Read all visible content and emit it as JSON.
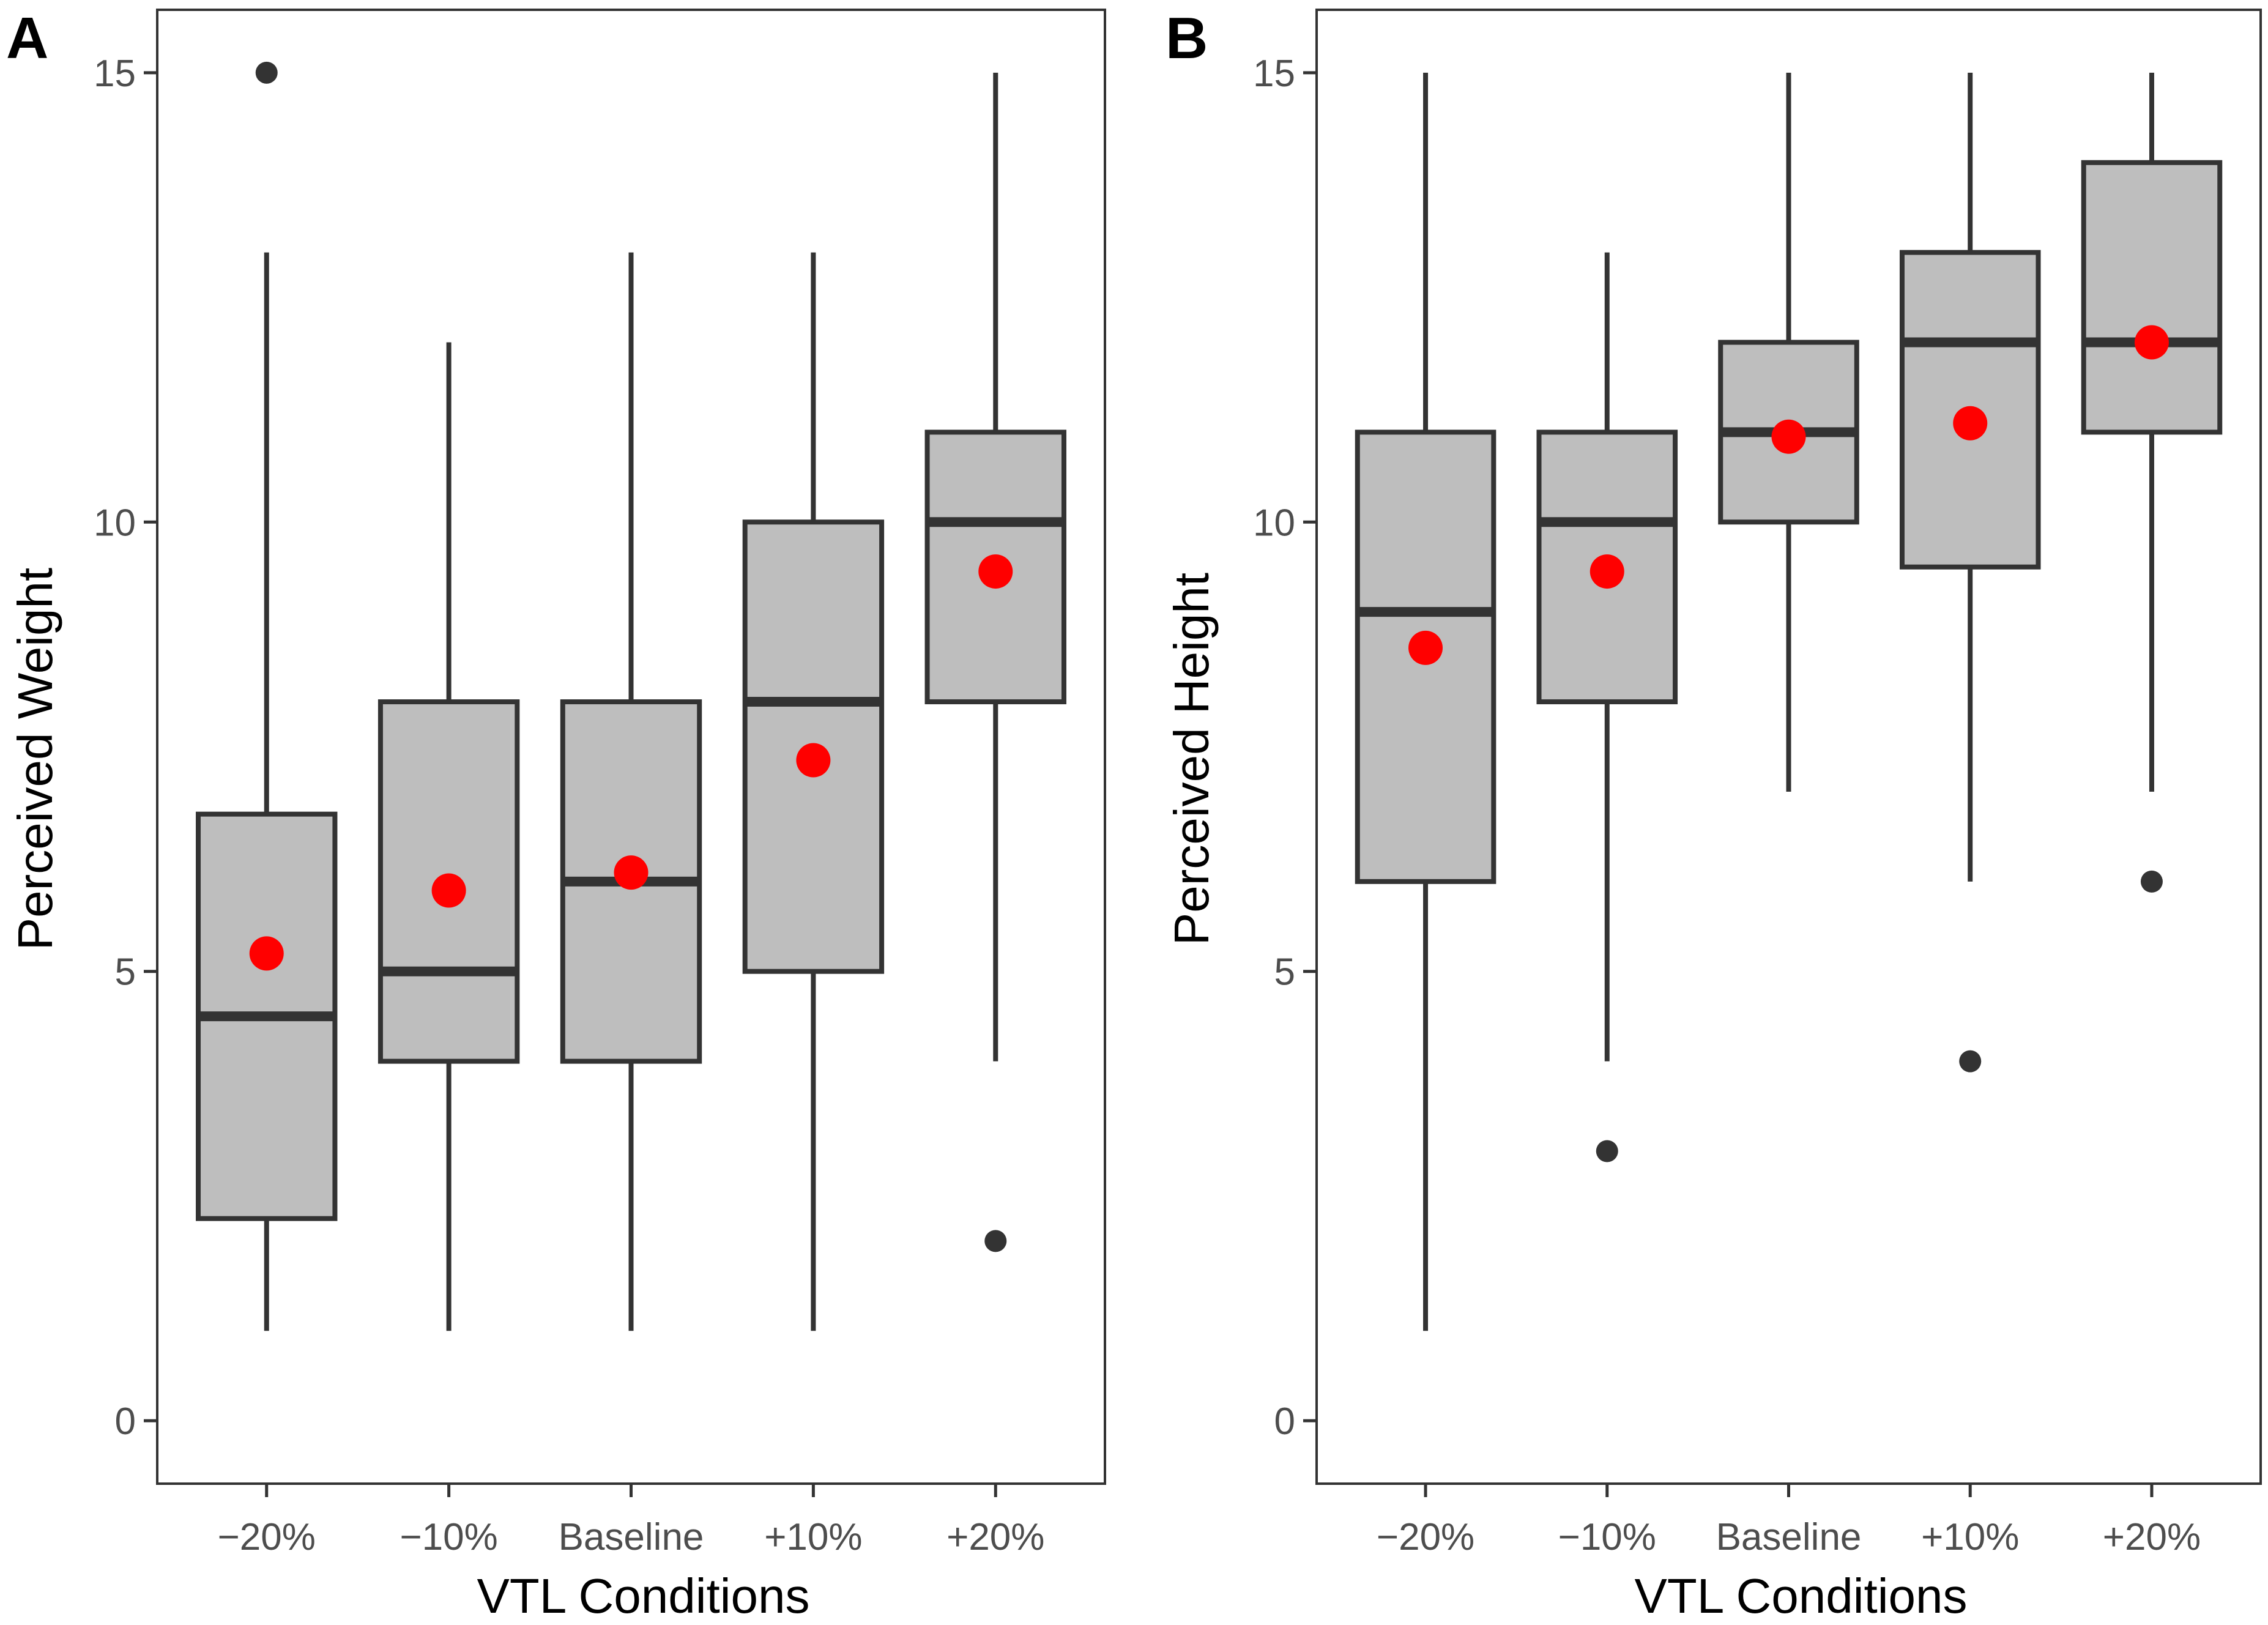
{
  "chart_data": [
    {
      "type": "boxplot",
      "panel_label": "A",
      "title": "",
      "xlabel": "VTL Conditions",
      "ylabel": "Perceived Weight",
      "categories": [
        "−20%",
        "−10%",
        "Baseline",
        "+10%",
        "+20%"
      ],
      "yticks": [
        0,
        5,
        10,
        15
      ],
      "ytick_labels": [
        "0",
        "5",
        "10",
        "15"
      ],
      "ylim": [
        -0.7,
        15.7
      ],
      "grid": false,
      "boxes": [
        {
          "category": "−20%",
          "whisker_low": 1,
          "q1": 2.25,
          "median": 4.5,
          "q3": 6.75,
          "whisker_high": 13,
          "mean": 5.2,
          "outliers": [
            15
          ]
        },
        {
          "category": "−10%",
          "whisker_low": 1,
          "q1": 4,
          "median": 5,
          "q3": 8,
          "whisker_high": 12,
          "mean": 5.9,
          "outliers": []
        },
        {
          "category": "Baseline",
          "whisker_low": 1,
          "q1": 4,
          "median": 6,
          "q3": 8,
          "whisker_high": 13,
          "mean": 6.1,
          "outliers": []
        },
        {
          "category": "+10%",
          "whisker_low": 1,
          "q1": 5,
          "median": 8,
          "q3": 10,
          "whisker_high": 13,
          "mean": 7.35,
          "outliers": []
        },
        {
          "category": "+20%",
          "whisker_low": 4,
          "q1": 8,
          "median": 10,
          "q3": 11,
          "whisker_high": 15,
          "mean": 9.45,
          "outliers": [
            2
          ]
        }
      ]
    },
    {
      "type": "boxplot",
      "panel_label": "B",
      "title": "",
      "xlabel": "VTL Conditions",
      "ylabel": "Perceived Height",
      "categories": [
        "−20%",
        "−10%",
        "Baseline",
        "+10%",
        "+20%"
      ],
      "yticks": [
        0,
        5,
        10,
        15
      ],
      "ytick_labels": [
        "0",
        "5",
        "10",
        "15"
      ],
      "ylim": [
        -0.7,
        15.7
      ],
      "grid": false,
      "boxes": [
        {
          "category": "−20%",
          "whisker_low": 1,
          "q1": 6,
          "median": 9,
          "q3": 11,
          "whisker_high": 15,
          "mean": 8.6,
          "outliers": []
        },
        {
          "category": "−10%",
          "whisker_low": 4,
          "q1": 8,
          "median": 10,
          "q3": 11,
          "whisker_high": 13,
          "mean": 9.45,
          "outliers": [
            3
          ]
        },
        {
          "category": "Baseline",
          "whisker_low": 7,
          "q1": 10,
          "median": 11,
          "q3": 12,
          "whisker_high": 15,
          "mean": 10.95,
          "outliers": []
        },
        {
          "category": "+10%",
          "whisker_low": 6,
          "q1": 9.5,
          "median": 12,
          "q3": 13,
          "whisker_high": 15,
          "mean": 11.1,
          "outliers": [
            4
          ]
        },
        {
          "category": "+20%",
          "whisker_low": 7,
          "q1": 11,
          "median": 12,
          "q3": 14,
          "whisker_high": 15,
          "mean": 12,
          "outliers": [
            6
          ]
        }
      ]
    }
  ],
  "colors": {
    "box_fill": "#bebebe",
    "box_stroke": "#333333",
    "mean_marker": "#ff0000",
    "outlier": "#333333",
    "panel_border": "#333333",
    "tick_text": "#4d4d4d"
  }
}
